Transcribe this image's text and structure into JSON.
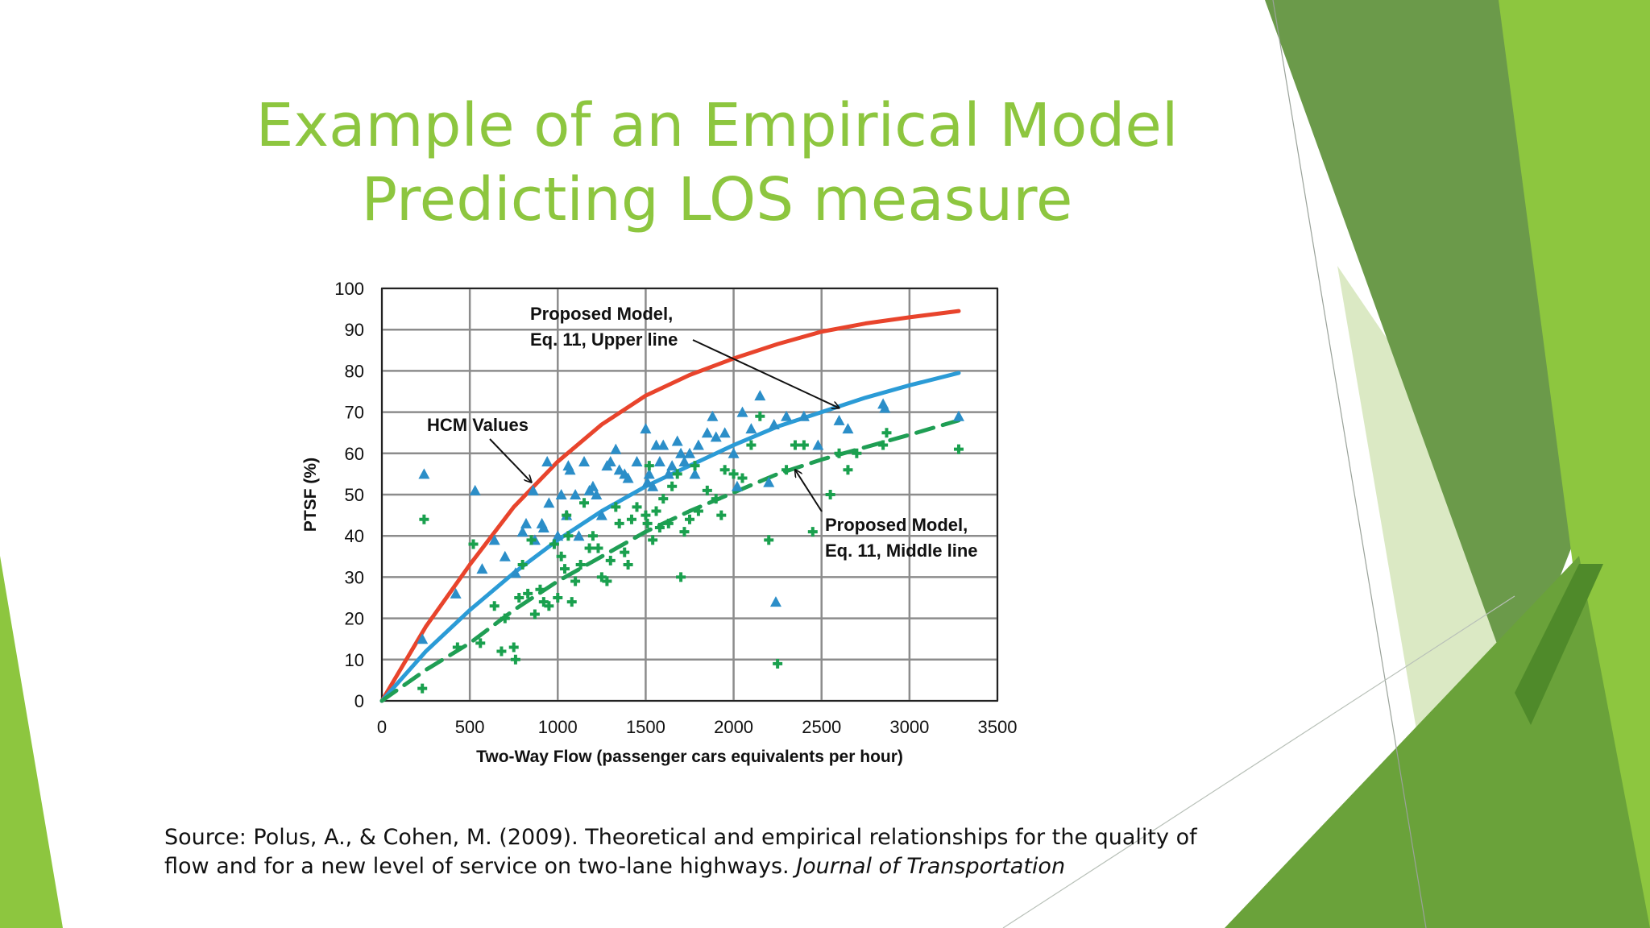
{
  "slide": {
    "title_line1": "Example of an Empirical Model",
    "title_line2": "Predicting LOS measure",
    "source_text": "Source: Polus, A., & Cohen, M. (2009). Theoretical and empirical relationships for the quality of flow and for a new level of service on two-lane highways. ",
    "source_journal": "Journal of Transportation",
    "accent_colors": [
      "#8dc63f",
      "#6aa23a",
      "#4f8a2a",
      "#dbe9c4"
    ]
  },
  "chart_data": {
    "type": "scatter",
    "xlabel": "Two-Way Flow (passenger cars equivalents per hour)",
    "ylabel": "PTSF (%)",
    "xlim": [
      0,
      3500
    ],
    "ylim": [
      0,
      100
    ],
    "xticks": [
      0,
      500,
      1000,
      1500,
      2000,
      2500,
      3000,
      3500
    ],
    "yticks": [
      0,
      10,
      20,
      30,
      40,
      50,
      60,
      70,
      80,
      90,
      100
    ],
    "grid": true,
    "annotations": [
      {
        "text_lines": [
          "Proposed Model,",
          "Eq. 11, Upper line"
        ],
        "target_x": 2600,
        "target_y": 71
      },
      {
        "text_lines": [
          "HCM Values"
        ],
        "target_x": 850,
        "target_y": 53
      },
      {
        "text_lines": [
          "Proposed Model,",
          "Eq. 11, Middle line"
        ],
        "target_x": 2350,
        "target_y": 56
      }
    ],
    "series": [
      {
        "type": "line",
        "style": "solid",
        "color": "#e8442c",
        "x": [
          0,
          250,
          500,
          750,
          1000,
          1250,
          1500,
          1750,
          2000,
          2250,
          2500,
          2750,
          3000,
          3280
        ],
        "y": [
          0,
          18,
          33,
          47,
          58,
          67,
          74,
          79,
          83,
          86.5,
          89.5,
          91.5,
          93,
          94.5
        ]
      },
      {
        "type": "line",
        "style": "solid",
        "color": "#2b9bd6",
        "x": [
          0,
          250,
          500,
          750,
          1000,
          1250,
          1500,
          1750,
          2000,
          2250,
          2500,
          2750,
          3000,
          3280
        ],
        "y": [
          0,
          12,
          22,
          31,
          39,
          46,
          52,
          57,
          62,
          66.5,
          70,
          73.5,
          76.5,
          79.5
        ]
      },
      {
        "type": "line",
        "style": "dashed",
        "color": "#1f9e54",
        "x": [
          0,
          250,
          500,
          750,
          1000,
          1250,
          1500,
          1750,
          2000,
          2250,
          2500,
          2750,
          3000,
          3280
        ],
        "y": [
          0,
          7.5,
          14,
          22,
          29,
          35,
          41,
          46,
          50.5,
          55,
          58.5,
          61.5,
          64.5,
          68
        ]
      },
      {
        "type": "scatter",
        "marker": "triangle",
        "color": "#2b8ec8",
        "x": [
          240,
          230,
          420,
          530,
          570,
          640,
          700,
          760,
          800,
          820,
          860,
          870,
          910,
          920,
          940,
          950,
          1000,
          1020,
          1050,
          1060,
          1070,
          1100,
          1120,
          1150,
          1180,
          1200,
          1220,
          1250,
          1280,
          1300,
          1330,
          1350,
          1380,
          1400,
          1450,
          1500,
          1510,
          1520,
          1540,
          1560,
          1580,
          1600,
          1630,
          1650,
          1680,
          1700,
          1720,
          1750,
          1780,
          1800,
          1850,
          1880,
          1900,
          1950,
          2000,
          2020,
          2050,
          2100,
          2150,
          2200,
          2230,
          2240,
          2300,
          2400,
          2480,
          2600,
          2650,
          2850,
          2860,
          3280
        ],
        "y": [
          55,
          15,
          26,
          51,
          32,
          39,
          35,
          31,
          41,
          43,
          51,
          39,
          43,
          42,
          58,
          48,
          40,
          50,
          45,
          57,
          56,
          50,
          40,
          58,
          51,
          52,
          50,
          45,
          57,
          58,
          61,
          56,
          55,
          54,
          58,
          66,
          53,
          55,
          52,
          62,
          58,
          62,
          55,
          57,
          63,
          60,
          58,
          60,
          55,
          62,
          65,
          69,
          64,
          65,
          60,
          52,
          70,
          66,
          74,
          53,
          67,
          24,
          69,
          69,
          62,
          68,
          66,
          72,
          71,
          69
        ]
      },
      {
        "type": "scatter",
        "marker": "cross",
        "color": "#1aa04e",
        "x": [
          240,
          230,
          430,
          520,
          560,
          640,
          680,
          700,
          750,
          760,
          780,
          800,
          830,
          850,
          870,
          900,
          920,
          950,
          980,
          1000,
          1020,
          1040,
          1050,
          1060,
          1080,
          1100,
          1130,
          1150,
          1180,
          1200,
          1230,
          1250,
          1280,
          1300,
          1330,
          1350,
          1380,
          1400,
          1420,
          1450,
          1500,
          1510,
          1520,
          1540,
          1560,
          1580,
          1600,
          1630,
          1650,
          1680,
          1700,
          1720,
          1750,
          1780,
          1800,
          1850,
          1900,
          1930,
          1950,
          2000,
          2050,
          2100,
          2150,
          2200,
          2250,
          2300,
          2350,
          2400,
          2450,
          2550,
          2600,
          2650,
          2700,
          2850,
          2870,
          3280
        ],
        "y": [
          44,
          3,
          13,
          38,
          14,
          23,
          12,
          20,
          13,
          10,
          25,
          33,
          26,
          39,
          21,
          27,
          24,
          23,
          38,
          25,
          35,
          32,
          45,
          40,
          24,
          29,
          33,
          48,
          37,
          40,
          37,
          30,
          29,
          34,
          47,
          43,
          36,
          33,
          44,
          47,
          45,
          43,
          57,
          39,
          46,
          42,
          49,
          43,
          52,
          55,
          30,
          41,
          44,
          57,
          46,
          51,
          49,
          45,
          56,
          55,
          54,
          62,
          69,
          39,
          9,
          56,
          62,
          62,
          41,
          50,
          60,
          56,
          60,
          62,
          65,
          61
        ]
      }
    ]
  }
}
